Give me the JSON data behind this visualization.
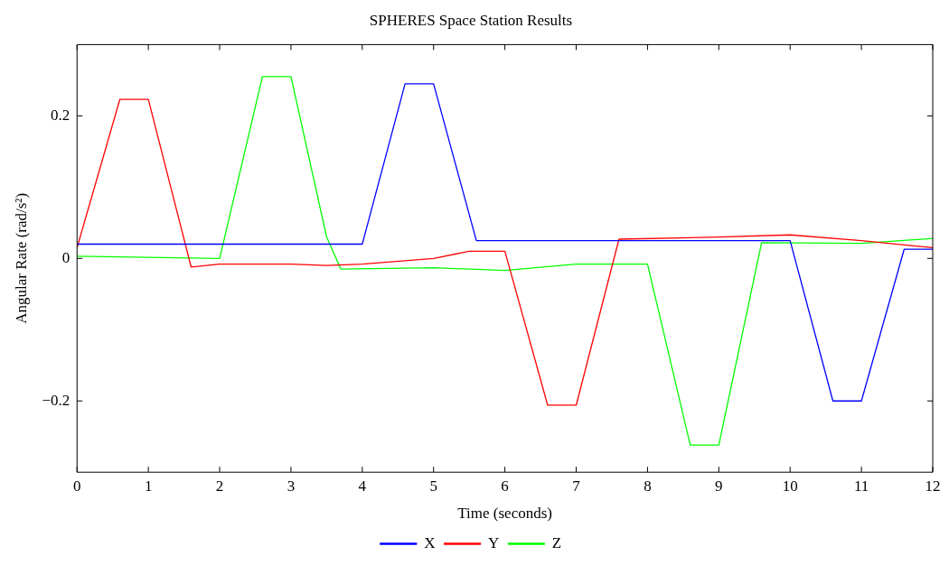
{
  "chart_data": {
    "type": "line",
    "title": "SPHERES Space Station Results",
    "xlabel": "Time (seconds)",
    "ylabel": "Angular Rate (rad/s²)",
    "xlim": [
      0,
      12
    ],
    "xticks": [
      0,
      1,
      2,
      3,
      4,
      5,
      6,
      7,
      8,
      9,
      10,
      11,
      12
    ],
    "ylim": [
      -0.3,
      0.3
    ],
    "yticks": [
      {
        "value": -0.2,
        "label": "−0.2"
      },
      0,
      0.2
    ],
    "grid": false,
    "legend": "bottom",
    "marker": "none",
    "line_style": "solid",
    "series": [
      {
        "name": "X",
        "color": "#0000ff",
        "x": [
          0,
          4,
          4.6,
          5,
          5.6,
          8,
          10,
          10.6,
          11,
          11.6,
          12
        ],
        "values": [
          0.02,
          0.02,
          0.245,
          0.245,
          0.025,
          0.025,
          0.025,
          -0.2,
          -0.2,
          0.013,
          0.013
        ]
      },
      {
        "name": "Y",
        "color": "#ff0000",
        "x": [
          0,
          0.6,
          1,
          1.6,
          2,
          3,
          3.5,
          4,
          5,
          5.5,
          6,
          6.6,
          7,
          7.6,
          9,
          10,
          11,
          12
        ],
        "values": [
          0.015,
          0.223,
          0.223,
          -0.012,
          -0.008,
          -0.008,
          -0.01,
          -0.008,
          0,
          0.01,
          0.01,
          -0.206,
          -0.206,
          0.027,
          0.03,
          0.033,
          0.025,
          0.015
        ]
      },
      {
        "name": "Z",
        "color": "#00ff00",
        "x": [
          0,
          2,
          2.6,
          3,
          3.5,
          3.7,
          5,
          6,
          7,
          8,
          8.6,
          9,
          9.6,
          11,
          12
        ],
        "values": [
          0.003,
          0,
          0.255,
          0.255,
          0.03,
          -0.015,
          -0.013,
          -0.017,
          -0.008,
          -0.008,
          -0.262,
          -0.262,
          0.022,
          0.021,
          0.028
        ]
      }
    ]
  }
}
